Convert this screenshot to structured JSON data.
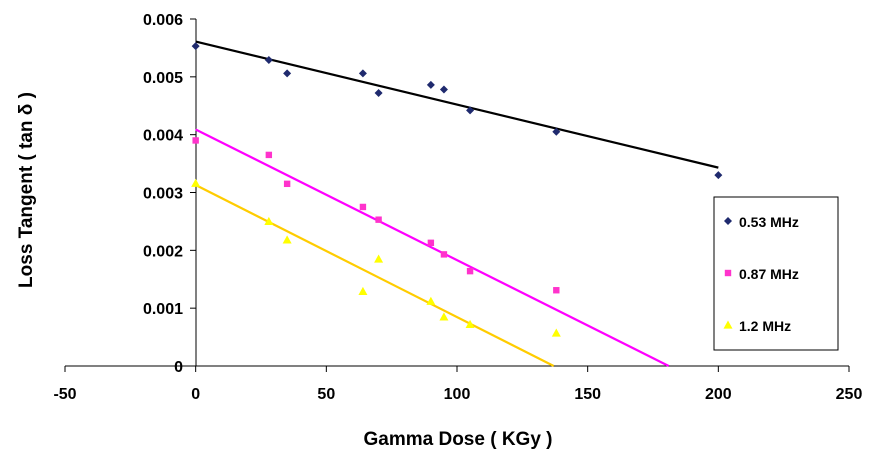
{
  "chart_data": {
    "type": "scatter",
    "title": "",
    "xlabel": "Gamma Dose ( KGy )",
    "ylabel": "Loss Tangent (   tan δ   )",
    "xlim": [
      -50,
      250
    ],
    "ylim": [
      0,
      0.006
    ],
    "x_ticks": [
      -50,
      0,
      50,
      100,
      150,
      200,
      250
    ],
    "y_ticks": [
      0,
      0.001,
      0.002,
      0.003,
      0.004,
      0.005,
      0.006
    ],
    "x_tick_labels": [
      "-50",
      "0",
      "50",
      "100",
      "150",
      "200",
      "250"
    ],
    "y_tick_labels": [
      "0",
      "0.001",
      "0.002",
      "0.003",
      "0.004",
      "0.005",
      "0.006"
    ],
    "grid": false,
    "legend_position": "right",
    "series": [
      {
        "name": "0.53 MHz",
        "marker": "diamond",
        "color": "#1f2a6e",
        "trend_color": "#000000",
        "points": [
          [
            0,
            0.00553
          ],
          [
            28,
            0.00529
          ],
          [
            35,
            0.00506
          ],
          [
            64,
            0.00506
          ],
          [
            70,
            0.00472
          ],
          [
            90,
            0.00486
          ],
          [
            95,
            0.00478
          ],
          [
            105,
            0.00442
          ],
          [
            138,
            0.00405
          ],
          [
            200,
            0.0033
          ]
        ],
        "trendline": [
          [
            0,
            0.00561
          ],
          [
            200,
            0.00343
          ]
        ]
      },
      {
        "name": "0.87 MHz",
        "marker": "square",
        "color": "#ff33cc",
        "trend_color": "#ff00ff",
        "points": [
          [
            0,
            0.0039
          ],
          [
            28,
            0.00365
          ],
          [
            35,
            0.00315
          ],
          [
            64,
            0.00275
          ],
          [
            70,
            0.00253
          ],
          [
            90,
            0.00213
          ],
          [
            95,
            0.00193
          ],
          [
            105,
            0.00164
          ],
          [
            138,
            0.00131
          ]
        ],
        "trendline": [
          [
            0,
            0.00409
          ],
          [
            181,
            0
          ]
        ]
      },
      {
        "name": "1.2 MHz",
        "marker": "triangle",
        "color": "#ffff00",
        "trend_color": "#ffcc00",
        "points": [
          [
            0,
            0.00316
          ],
          [
            28,
            0.0025
          ],
          [
            35,
            0.00218
          ],
          [
            64,
            0.00129
          ],
          [
            70,
            0.00185
          ],
          [
            90,
            0.00112
          ],
          [
            95,
            0.00085
          ],
          [
            105,
            0.00072
          ],
          [
            138,
            0.00057
          ]
        ],
        "trendline": [
          [
            0,
            0.00313
          ],
          [
            137,
            0
          ]
        ]
      }
    ]
  }
}
